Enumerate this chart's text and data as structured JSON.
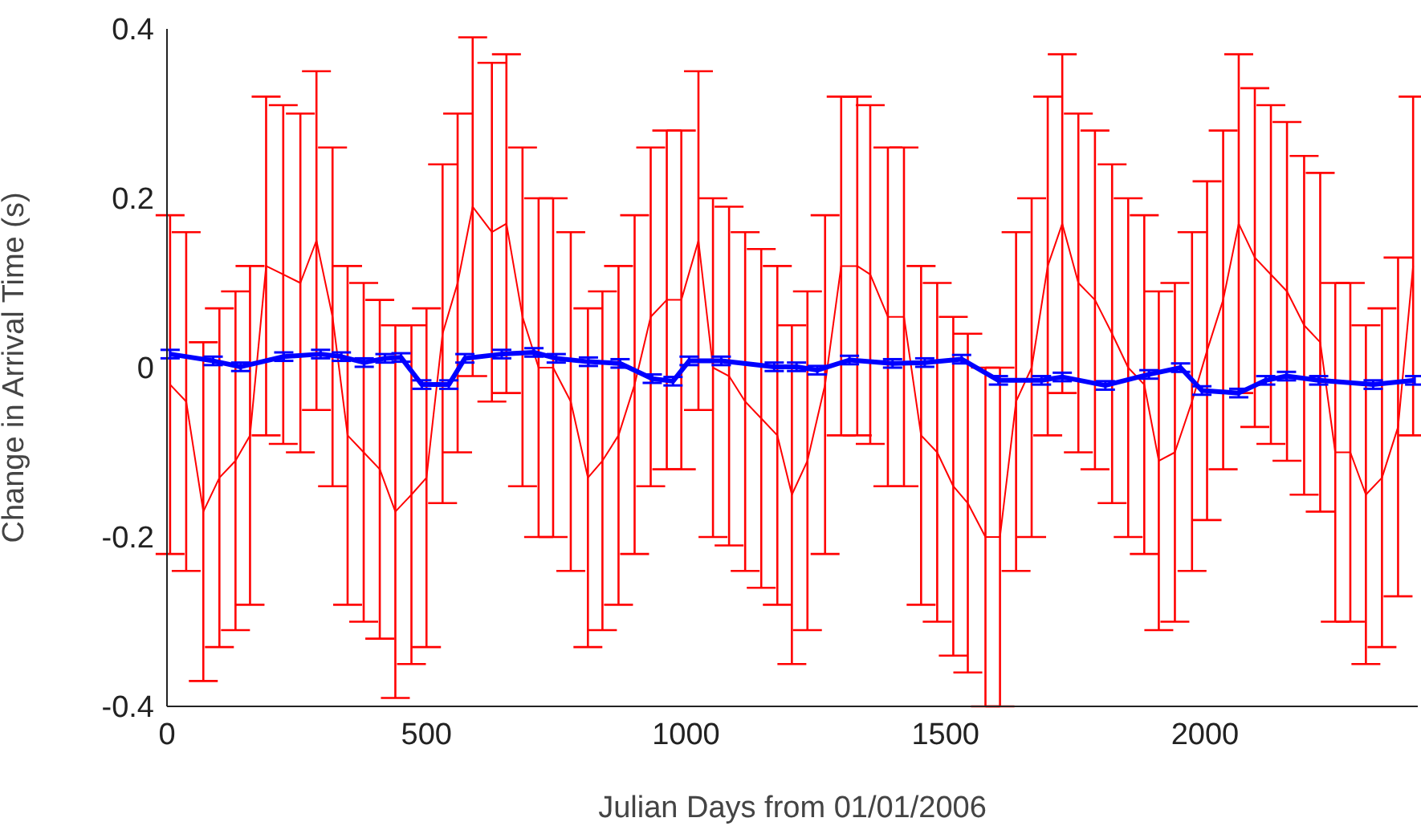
{
  "chart_data": {
    "type": "line",
    "xlabel": "Julian Days from 01/01/2006",
    "ylabel": "Change in Arrival Time (s)",
    "xlim": [
      0,
      2410
    ],
    "xticks": [
      0,
      500,
      1000,
      1500,
      2000
    ],
    "ylim": [
      -0.4,
      0.4
    ],
    "yticks": [
      -0.4,
      -0.2,
      0,
      0.2,
      0.4
    ],
    "marker": "none",
    "line_style": "solid",
    "series": [
      {
        "color": "#ff0000",
        "x": [
          6,
          37,
          70,
          101,
          132,
          160,
          191,
          224,
          257,
          288,
          319,
          348,
          379,
          410,
          440,
          471,
          500,
          531,
          560,
          589,
          626,
          654,
          685,
          716,
          744,
          778,
          811,
          839,
          870,
          901,
          932,
          963,
          991,
          1024,
          1052,
          1083,
          1114,
          1145,
          1176,
          1204,
          1234,
          1268,
          1299,
          1330,
          1355,
          1389,
          1420,
          1453,
          1484,
          1515,
          1543,
          1577,
          1605,
          1636,
          1666,
          1697,
          1725,
          1756,
          1788,
          1821,
          1852,
          1883,
          1911,
          1942,
          1975,
          2004,
          2035,
          2065,
          2096,
          2127,
          2158,
          2191,
          2222,
          2251,
          2280,
          2310,
          2341,
          2372,
          2401
        ],
        "values": [
          -0.02,
          -0.04,
          -0.17,
          -0.13,
          -0.11,
          -0.08,
          0.12,
          0.11,
          0.1,
          0.15,
          0.06,
          -0.08,
          -0.1,
          -0.12,
          -0.17,
          -0.15,
          -0.13,
          0.04,
          0.1,
          0.19,
          0.16,
          0.17,
          0.06,
          0,
          0,
          -0.04,
          -0.13,
          -0.11,
          -0.08,
          -0.02,
          0.06,
          0.08,
          0.08,
          0.15,
          0,
          -0.01,
          -0.04,
          -0.06,
          -0.08,
          -0.15,
          -0.11,
          -0.02,
          0.12,
          0.12,
          0.11,
          0.06,
          0.06,
          -0.08,
          -0.1,
          -0.14,
          -0.16,
          -0.2,
          -0.2,
          -0.04,
          0,
          0.12,
          0.17,
          0.1,
          0.08,
          0.04,
          0,
          -0.02,
          -0.11,
          -0.1,
          -0.04,
          0.02,
          0.08,
          0.17,
          0.13,
          0.11,
          0.09,
          0.05,
          0.03,
          -0.1,
          -0.1,
          -0.15,
          -0.13,
          -0.07,
          0.12
        ],
        "errors": [
          0.2,
          0.2,
          0.2,
          0.2,
          0.2,
          0.2,
          0.2,
          0.2,
          0.2,
          0.2,
          0.2,
          0.2,
          0.2,
          0.2,
          0.22,
          0.2,
          0.2,
          0.2,
          0.2,
          0.2,
          0.2,
          0.2,
          0.2,
          0.2,
          0.2,
          0.2,
          0.2,
          0.2,
          0.2,
          0.2,
          0.2,
          0.2,
          0.2,
          0.2,
          0.2,
          0.2,
          0.2,
          0.2,
          0.2,
          0.2,
          0.2,
          0.2,
          0.2,
          0.2,
          0.2,
          0.2,
          0.2,
          0.2,
          0.2,
          0.2,
          0.2,
          0.2,
          0.2,
          0.2,
          0.2,
          0.2,
          0.2,
          0.2,
          0.2,
          0.2,
          0.2,
          0.2,
          0.2,
          0.2,
          0.2,
          0.2,
          0.2,
          0.2,
          0.2,
          0.2,
          0.2,
          0.2,
          0.2,
          0.2,
          0.2,
          0.2,
          0.2,
          0.2,
          0.2
        ]
      },
      {
        "color": "#0000ff",
        "x": [
          6,
          89,
          142,
          225,
          296,
          336,
          380,
          420,
          451,
          491,
          543,
          574,
          645,
          707,
          750,
          812,
          873,
          935,
          975,
          1006,
          1068,
          1170,
          1213,
          1253,
          1315,
          1398,
          1460,
          1531,
          1602,
          1685,
          1725,
          1808,
          1892,
          1953,
          1994,
          2065,
          2117,
          2157,
          2219,
          2324,
          2404
        ],
        "values": [
          0.016,
          0.008,
          0.001,
          0.013,
          0.016,
          0.013,
          0.006,
          0.011,
          0.012,
          -0.02,
          -0.02,
          0.011,
          0.016,
          0.018,
          0.011,
          0.007,
          0.005,
          -0.013,
          -0.016,
          0.008,
          0.008,
          0.001,
          0.001,
          -0.003,
          0.009,
          0.005,
          0.006,
          0.01,
          -0.015,
          -0.015,
          -0.011,
          -0.021,
          -0.008,
          0,
          -0.027,
          -0.03,
          -0.015,
          -0.01,
          -0.015,
          -0.02,
          -0.015
        ],
        "errors": [
          0.005,
          0.005,
          0.005,
          0.005,
          0.005,
          0.005,
          0.005,
          0.005,
          0.005,
          0.005,
          0.005,
          0.005,
          0.005,
          0.005,
          0.005,
          0.005,
          0.005,
          0.005,
          0.005,
          0.005,
          0.005,
          0.005,
          0.005,
          0.005,
          0.005,
          0.005,
          0.005,
          0.005,
          0.005,
          0.005,
          0.005,
          0.005,
          0.005,
          0.005,
          0.005,
          0.005,
          0.005,
          0.005,
          0.005,
          0.005,
          0.005
        ]
      }
    ]
  }
}
